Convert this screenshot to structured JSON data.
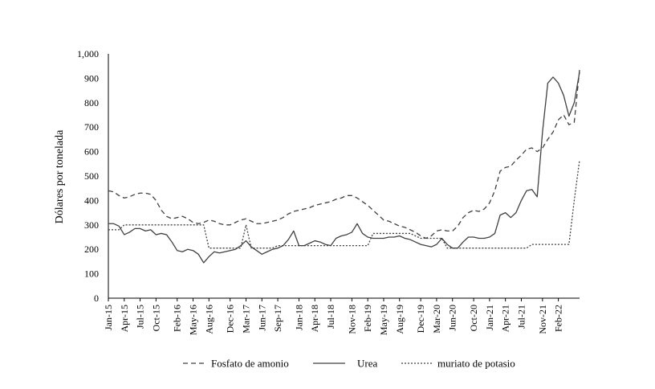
{
  "chart_data": {
    "type": "line",
    "ylabel": "Dólares por tonelada",
    "xlabel": "",
    "ylim": [
      0,
      1000
    ],
    "yticks": [
      "0",
      "100",
      "200",
      "300",
      "400",
      "500",
      "600",
      "700",
      "800",
      "900",
      "1,000"
    ],
    "xticks": [
      "Jan-15",
      "Apr-15",
      "Jul-15",
      "Oct-15",
      "Feb-16",
      "May-16",
      "Aug-16",
      "Dec-16",
      "Mar-17",
      "Jun-17",
      "Sep-17",
      "Jan-18",
      "Apr-18",
      "Jul-18",
      "Nov-18",
      "Feb-19",
      "May-19",
      "Aug-19",
      "Dec-19",
      "Mar-20",
      "Jun-20",
      "Oct-20",
      "Jan-21",
      "Apr-21",
      "Jul-21",
      "Nov-21",
      "Feb-22"
    ],
    "grid": false,
    "legend_position": "bottom",
    "series": [
      {
        "name": "Fosfato de amonio",
        "style": "dashed",
        "points": [
          [
            "2015-01",
            440
          ],
          [
            "2015-02",
            435
          ],
          [
            "2015-03",
            420
          ],
          [
            "2015-04",
            410
          ],
          [
            "2015-05",
            415
          ],
          [
            "2015-06",
            425
          ],
          [
            "2015-07",
            430
          ],
          [
            "2015-08",
            430
          ],
          [
            "2015-09",
            425
          ],
          [
            "2015-10",
            400
          ],
          [
            "2015-11",
            360
          ],
          [
            "2015-12",
            335
          ],
          [
            "2016-01",
            325
          ],
          [
            "2016-02",
            330
          ],
          [
            "2016-03",
            335
          ],
          [
            "2016-04",
            325
          ],
          [
            "2016-05",
            310
          ],
          [
            "2016-06",
            305
          ],
          [
            "2016-07",
            310
          ],
          [
            "2016-08",
            320
          ],
          [
            "2016-09",
            315
          ],
          [
            "2016-10",
            305
          ],
          [
            "2016-11",
            300
          ],
          [
            "2016-12",
            300
          ],
          [
            "2017-01",
            310
          ],
          [
            "2017-02",
            320
          ],
          [
            "2017-03",
            325
          ],
          [
            "2017-04",
            315
          ],
          [
            "2017-05",
            305
          ],
          [
            "2017-06",
            305
          ],
          [
            "2017-07",
            310
          ],
          [
            "2017-08",
            315
          ],
          [
            "2017-09",
            320
          ],
          [
            "2017-10",
            330
          ],
          [
            "2017-11",
            345
          ],
          [
            "2017-12",
            355
          ],
          [
            "2018-01",
            360
          ],
          [
            "2018-02",
            365
          ],
          [
            "2018-03",
            370
          ],
          [
            "2018-04",
            380
          ],
          [
            "2018-05",
            385
          ],
          [
            "2018-06",
            390
          ],
          [
            "2018-07",
            395
          ],
          [
            "2018-08",
            405
          ],
          [
            "2018-09",
            410
          ],
          [
            "2018-10",
            420
          ],
          [
            "2018-11",
            420
          ],
          [
            "2018-12",
            410
          ],
          [
            "2019-01",
            395
          ],
          [
            "2019-02",
            380
          ],
          [
            "2019-03",
            360
          ],
          [
            "2019-04",
            340
          ],
          [
            "2019-05",
            320
          ],
          [
            "2019-06",
            315
          ],
          [
            "2019-07",
            305
          ],
          [
            "2019-08",
            295
          ],
          [
            "2019-09",
            290
          ],
          [
            "2019-10",
            280
          ],
          [
            "2019-11",
            270
          ],
          [
            "2019-12",
            255
          ],
          [
            "2020-01",
            245
          ],
          [
            "2020-02",
            255
          ],
          [
            "2020-03",
            275
          ],
          [
            "2020-04",
            280
          ],
          [
            "2020-05",
            275
          ],
          [
            "2020-06",
            275
          ],
          [
            "2020-07",
            295
          ],
          [
            "2020-08",
            330
          ],
          [
            "2020-09",
            350
          ],
          [
            "2020-10",
            360
          ],
          [
            "2020-11",
            355
          ],
          [
            "2020-12",
            365
          ],
          [
            "2021-01",
            390
          ],
          [
            "2021-02",
            440
          ],
          [
            "2021-03",
            520
          ],
          [
            "2021-04",
            535
          ],
          [
            "2021-05",
            540
          ],
          [
            "2021-06",
            565
          ],
          [
            "2021-07",
            585
          ],
          [
            "2021-08",
            610
          ],
          [
            "2021-09",
            615
          ],
          [
            "2021-10",
            600
          ],
          [
            "2021-11",
            615
          ],
          [
            "2021-12",
            650
          ],
          [
            "2022-01",
            680
          ],
          [
            "2022-02",
            730
          ],
          [
            "2022-03",
            750
          ],
          [
            "2022-04",
            710
          ],
          [
            "2022-05",
            720
          ],
          [
            "2022-06",
            935
          ]
        ]
      },
      {
        "name": "Urea",
        "style": "solid",
        "points": [
          [
            "2015-01",
            305
          ],
          [
            "2015-02",
            305
          ],
          [
            "2015-03",
            295
          ],
          [
            "2015-04",
            260
          ],
          [
            "2015-05",
            270
          ],
          [
            "2015-06",
            285
          ],
          [
            "2015-07",
            285
          ],
          [
            "2015-08",
            275
          ],
          [
            "2015-09",
            280
          ],
          [
            "2015-10",
            260
          ],
          [
            "2015-11",
            265
          ],
          [
            "2015-12",
            260
          ],
          [
            "2016-01",
            230
          ],
          [
            "2016-02",
            195
          ],
          [
            "2016-03",
            190
          ],
          [
            "2016-04",
            200
          ],
          [
            "2016-05",
            195
          ],
          [
            "2016-06",
            180
          ],
          [
            "2016-07",
            145
          ],
          [
            "2016-08",
            170
          ],
          [
            "2016-09",
            190
          ],
          [
            "2016-10",
            185
          ],
          [
            "2016-11",
            190
          ],
          [
            "2016-12",
            195
          ],
          [
            "2017-01",
            200
          ],
          [
            "2017-02",
            215
          ],
          [
            "2017-03",
            235
          ],
          [
            "2017-04",
            210
          ],
          [
            "2017-05",
            195
          ],
          [
            "2017-06",
            180
          ],
          [
            "2017-07",
            190
          ],
          [
            "2017-08",
            200
          ],
          [
            "2017-09",
            205
          ],
          [
            "2017-10",
            215
          ],
          [
            "2017-11",
            240
          ],
          [
            "2017-12",
            275
          ],
          [
            "2018-01",
            215
          ],
          [
            "2018-02",
            215
          ],
          [
            "2018-03",
            225
          ],
          [
            "2018-04",
            235
          ],
          [
            "2018-05",
            230
          ],
          [
            "2018-06",
            220
          ],
          [
            "2018-07",
            215
          ],
          [
            "2018-08",
            245
          ],
          [
            "2018-09",
            255
          ],
          [
            "2018-10",
            260
          ],
          [
            "2018-11",
            270
          ],
          [
            "2018-12",
            305
          ],
          [
            "2019-01",
            265
          ],
          [
            "2019-02",
            250
          ],
          [
            "2019-03",
            245
          ],
          [
            "2019-04",
            245
          ],
          [
            "2019-05",
            245
          ],
          [
            "2019-06",
            250
          ],
          [
            "2019-07",
            250
          ],
          [
            "2019-08",
            255
          ],
          [
            "2019-09",
            245
          ],
          [
            "2019-10",
            240
          ],
          [
            "2019-11",
            230
          ],
          [
            "2019-12",
            220
          ],
          [
            "2020-01",
            215
          ],
          [
            "2020-02",
            210
          ],
          [
            "2020-03",
            220
          ],
          [
            "2020-04",
            245
          ],
          [
            "2020-05",
            220
          ],
          [
            "2020-06",
            205
          ],
          [
            "2020-07",
            205
          ],
          [
            "2020-08",
            230
          ],
          [
            "2020-09",
            250
          ],
          [
            "2020-10",
            250
          ],
          [
            "2020-11",
            245
          ],
          [
            "2020-12",
            245
          ],
          [
            "2021-01",
            250
          ],
          [
            "2021-02",
            265
          ],
          [
            "2021-03",
            340
          ],
          [
            "2021-04",
            350
          ],
          [
            "2021-05",
            330
          ],
          [
            "2021-06",
            350
          ],
          [
            "2021-07",
            400
          ],
          [
            "2021-08",
            440
          ],
          [
            "2021-09",
            445
          ],
          [
            "2021-10",
            415
          ],
          [
            "2021-11",
            680
          ],
          [
            "2021-12",
            880
          ],
          [
            "2022-01",
            905
          ],
          [
            "2022-02",
            880
          ],
          [
            "2022-03",
            830
          ],
          [
            "2022-04",
            745
          ],
          [
            "2022-05",
            800
          ],
          [
            "2022-06",
            925
          ]
        ]
      },
      {
        "name": "muriato de potasio",
        "style": "dotted",
        "points": [
          [
            "2015-01",
            280
          ],
          [
            "2015-02",
            280
          ],
          [
            "2015-03",
            280
          ],
          [
            "2015-04",
            300
          ],
          [
            "2015-05",
            300
          ],
          [
            "2015-06",
            300
          ],
          [
            "2015-07",
            300
          ],
          [
            "2015-08",
            300
          ],
          [
            "2015-09",
            300
          ],
          [
            "2015-10",
            300
          ],
          [
            "2015-11",
            300
          ],
          [
            "2015-12",
            300
          ],
          [
            "2016-01",
            300
          ],
          [
            "2016-02",
            300
          ],
          [
            "2016-03",
            300
          ],
          [
            "2016-04",
            300
          ],
          [
            "2016-05",
            300
          ],
          [
            "2016-06",
            300
          ],
          [
            "2016-07",
            300
          ],
          [
            "2016-08",
            205
          ],
          [
            "2016-09",
            205
          ],
          [
            "2016-10",
            205
          ],
          [
            "2016-11",
            205
          ],
          [
            "2016-12",
            205
          ],
          [
            "2017-01",
            205
          ],
          [
            "2017-02",
            205
          ],
          [
            "2017-03",
            300
          ],
          [
            "2017-04",
            205
          ],
          [
            "2017-05",
            205
          ],
          [
            "2017-06",
            205
          ],
          [
            "2017-07",
            205
          ],
          [
            "2017-08",
            205
          ],
          [
            "2017-09",
            215
          ],
          [
            "2017-10",
            215
          ],
          [
            "2017-11",
            215
          ],
          [
            "2017-12",
            215
          ],
          [
            "2018-01",
            215
          ],
          [
            "2018-02",
            215
          ],
          [
            "2018-03",
            215
          ],
          [
            "2018-04",
            215
          ],
          [
            "2018-05",
            215
          ],
          [
            "2018-06",
            215
          ],
          [
            "2018-07",
            215
          ],
          [
            "2018-08",
            215
          ],
          [
            "2018-09",
            215
          ],
          [
            "2018-10",
            215
          ],
          [
            "2018-11",
            215
          ],
          [
            "2018-12",
            215
          ],
          [
            "2019-01",
            215
          ],
          [
            "2019-02",
            215
          ],
          [
            "2019-03",
            265
          ],
          [
            "2019-04",
            265
          ],
          [
            "2019-05",
            265
          ],
          [
            "2019-06",
            265
          ],
          [
            "2019-07",
            265
          ],
          [
            "2019-08",
            265
          ],
          [
            "2019-09",
            265
          ],
          [
            "2019-10",
            265
          ],
          [
            "2019-11",
            255
          ],
          [
            "2019-12",
            245
          ],
          [
            "2020-01",
            245
          ],
          [
            "2020-02",
            245
          ],
          [
            "2020-03",
            245
          ],
          [
            "2020-04",
            245
          ],
          [
            "2020-05",
            205
          ],
          [
            "2020-06",
            205
          ],
          [
            "2020-07",
            205
          ],
          [
            "2020-08",
            205
          ],
          [
            "2020-09",
            205
          ],
          [
            "2020-10",
            205
          ],
          [
            "2020-11",
            205
          ],
          [
            "2020-12",
            205
          ],
          [
            "2021-01",
            205
          ],
          [
            "2021-02",
            205
          ],
          [
            "2021-03",
            205
          ],
          [
            "2021-04",
            205
          ],
          [
            "2021-05",
            205
          ],
          [
            "2021-06",
            205
          ],
          [
            "2021-07",
            205
          ],
          [
            "2021-08",
            205
          ],
          [
            "2021-09",
            220
          ],
          [
            "2021-10",
            220
          ],
          [
            "2021-11",
            220
          ],
          [
            "2021-12",
            220
          ],
          [
            "2022-01",
            220
          ],
          [
            "2022-02",
            220
          ],
          [
            "2022-03",
            220
          ],
          [
            "2022-04",
            220
          ],
          [
            "2022-05",
            400
          ],
          [
            "2022-06",
            565
          ]
        ]
      }
    ]
  }
}
